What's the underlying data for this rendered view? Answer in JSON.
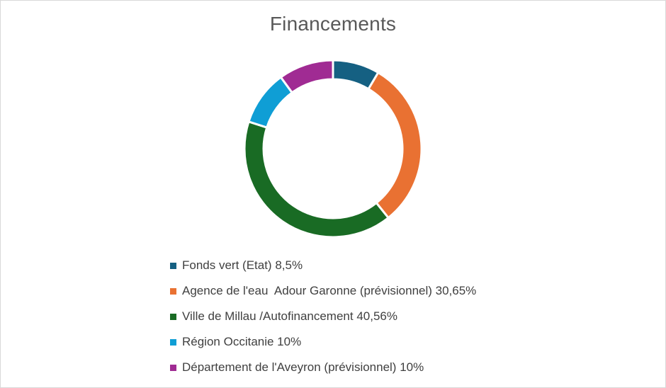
{
  "chart_data": {
    "type": "pie",
    "variant": "donut",
    "title": "Financements",
    "categories": [
      "Fonds vert (Etat) 8,5%",
      "Agence de l'eau  Adour Garonne (prévisionnel) 30,65%",
      "Ville de Millau /Autofinancement 40,56%",
      "Région Occitanie 10%",
      "Département de l'Aveyron (prévisionnel) 10%"
    ],
    "values": [
      8.5,
      30.65,
      40.56,
      10,
      10
    ],
    "colors": [
      "#156082",
      "#E97132",
      "#196B24",
      "#0F9ED5",
      "#A02B93"
    ],
    "legend_position": "bottom",
    "data_labels": false
  }
}
